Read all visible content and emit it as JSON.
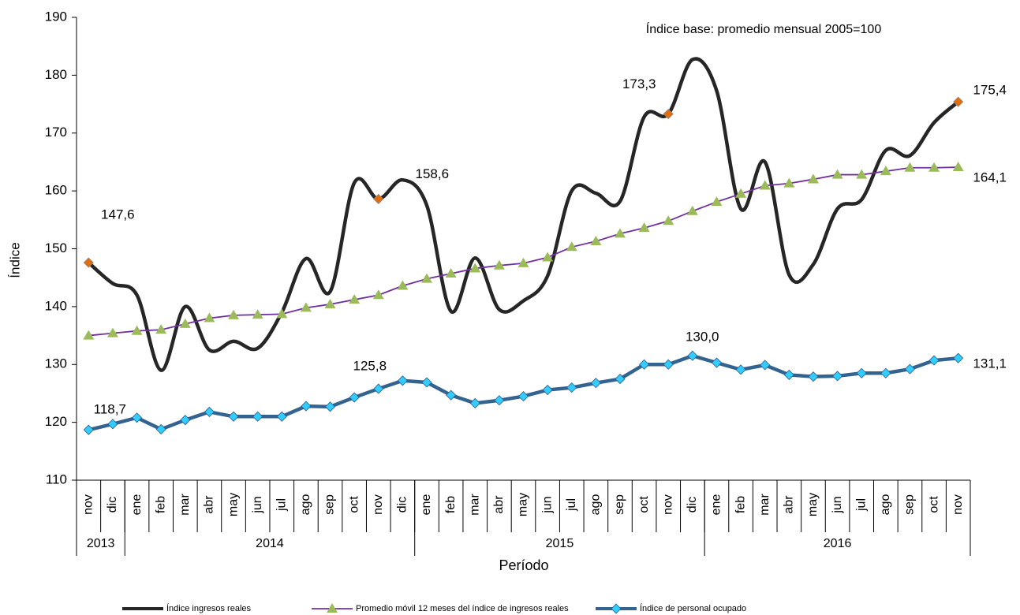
{
  "chart_data": {
    "type": "line",
    "annotation": "Índice base: promedio  mensual 2005=100",
    "y_label": "Índice",
    "x_label": "Período",
    "categories": [
      "nov",
      "dic",
      "ene",
      "feb",
      "mar",
      "abr",
      "may",
      "jun",
      "jul",
      "ago",
      "sep",
      "oct",
      "nov",
      "dic",
      "ene",
      "feb",
      "mar",
      "abr",
      "may",
      "jun",
      "jul",
      "ago",
      "sep",
      "oct",
      "nov",
      "dic",
      "ene",
      "feb",
      "mar",
      "abr",
      "may",
      "jun",
      "jul",
      "ago",
      "sep",
      "oct",
      "nov"
    ],
    "year_groups": [
      {
        "label": "2013",
        "span": 2
      },
      {
        "label": "2014",
        "span": 12
      },
      {
        "label": "2015",
        "span": 12
      },
      {
        "label": "2016",
        "span": 11
      }
    ],
    "ylim": [
      110,
      190
    ],
    "yticks": [
      110,
      120,
      130,
      140,
      150,
      160,
      170,
      180,
      190
    ],
    "series": [
      {
        "name": "Índice ingresos reales",
        "color": "#262626",
        "smooth": true,
        "highlight_color": "#e46c0a",
        "values": [
          147.6,
          144,
          142,
          129,
          140,
          132.5,
          134,
          132.8,
          139,
          148.3,
          142.6,
          161.4,
          158.6,
          161.9,
          157.5,
          139.2,
          148.4,
          139.5,
          141,
          145.3,
          160,
          159.6,
          158.2,
          172.8,
          173.3,
          182.7,
          177.3,
          156.9,
          165,
          145.5,
          147.3,
          156.9,
          158.5,
          167,
          166.1,
          171.8,
          175.4
        ],
        "value_labels": [
          "147,6",
          null,
          null,
          null,
          null,
          null,
          null,
          null,
          null,
          null,
          null,
          null,
          "158,6",
          null,
          null,
          null,
          null,
          null,
          null,
          null,
          null,
          null,
          null,
          null,
          "173,3",
          null,
          null,
          null,
          null,
          null,
          null,
          null,
          null,
          null,
          null,
          null,
          "175,4"
        ]
      },
      {
        "name": "Promedio móvil 12 meses del índice de ingresos reales",
        "color": "#7030a0",
        "marker": "triangle",
        "marker_color": "#9bbb59",
        "values": [
          135,
          135.4,
          135.8,
          136,
          137,
          138,
          138.5,
          138.6,
          138.7,
          139.8,
          140.4,
          141.2,
          142,
          143.6,
          144.8,
          145.7,
          146.6,
          147.1,
          147.5,
          148.5,
          150.3,
          151.3,
          152.6,
          153.6,
          154.8,
          156.5,
          158.1,
          159.5,
          160.9,
          161.3,
          162,
          162.8,
          162.8,
          163.4,
          164,
          164,
          164.1
        ],
        "value_labels": [
          null,
          null,
          null,
          null,
          null,
          null,
          null,
          null,
          null,
          null,
          null,
          null,
          null,
          null,
          null,
          null,
          null,
          null,
          null,
          null,
          null,
          null,
          null,
          null,
          null,
          null,
          null,
          null,
          null,
          null,
          null,
          null,
          null,
          null,
          null,
          null,
          "164,1"
        ]
      },
      {
        "name": "Índice de personal ocupado",
        "color": "#35638f",
        "marker": "diamond",
        "marker_color": "#33ccff",
        "values": [
          118.7,
          119.7,
          120.8,
          118.8,
          120.4,
          121.8,
          121,
          121,
          121,
          122.8,
          122.7,
          124.3,
          125.8,
          127.2,
          126.9,
          124.7,
          123.3,
          123.8,
          124.5,
          125.6,
          126,
          126.8,
          127.5,
          130,
          130,
          131.5,
          130.3,
          129.1,
          129.9,
          128.2,
          127.9,
          128,
          128.5,
          128.5,
          129.2,
          130.7,
          131.1
        ],
        "value_labels": [
          "118,7",
          null,
          null,
          null,
          null,
          null,
          null,
          null,
          null,
          null,
          null,
          null,
          "125,8",
          null,
          null,
          null,
          null,
          null,
          null,
          null,
          null,
          null,
          null,
          null,
          "130,0",
          null,
          null,
          null,
          null,
          null,
          null,
          null,
          null,
          null,
          null,
          null,
          "131,1"
        ]
      }
    ]
  }
}
